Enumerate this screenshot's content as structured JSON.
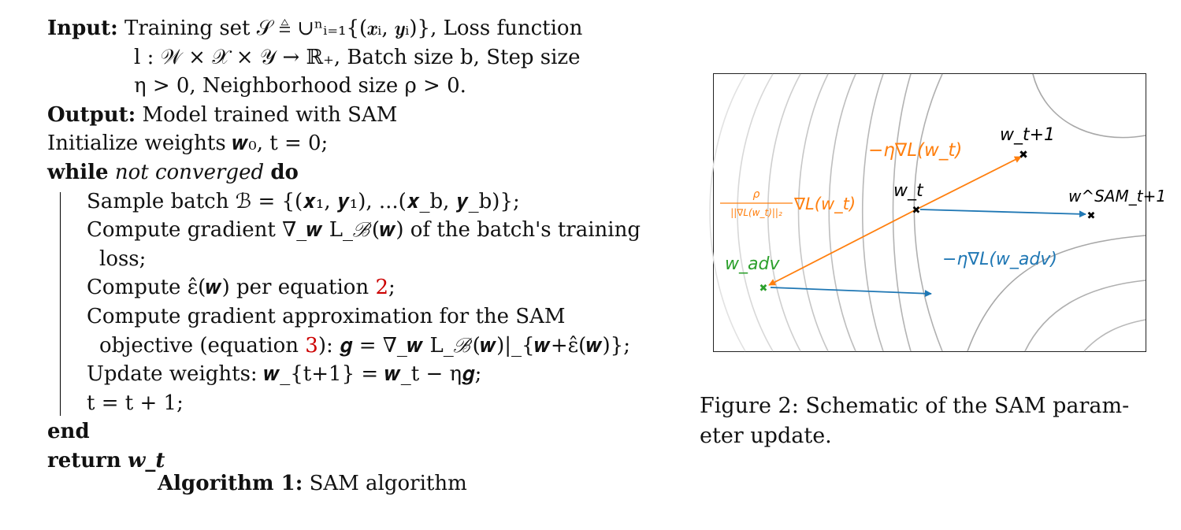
{
  "algorithm": {
    "input_label": "Input:",
    "input_line1": "Training set 𝒮 ≜ ∪ⁿᵢ₌₁{(𝒙ᵢ, 𝒚ᵢ)}, Loss function",
    "input_line2": "l : 𝒲 × 𝒳 × 𝒴 → ℝ₊, Batch size b, Step size",
    "input_line3": "η > 0, Neighborhood size ρ > 0.",
    "output_label": "Output:",
    "output_text": "Model trained with SAM",
    "init": "Initialize weights 𝒘₀, t = 0;",
    "while_kw": "while",
    "while_cond": "not converged",
    "do_kw": "do",
    "sample": "Sample batch ℬ = {(𝒙₁, 𝒚₁), ...(𝒙_b, 𝒚_b)};",
    "grad_line1": "Compute gradient ∇_𝒘 L_ℬ(𝒘) of the batch's training",
    "grad_line2": "loss;",
    "eps_prefix": "Compute ε̂(𝒘) per equation ",
    "eps_ref": "2",
    "eps_suffix": ";",
    "approx_line1": "Compute gradient approximation for the SAM",
    "approx_prefix": "objective (equation ",
    "approx_ref": "3",
    "approx_suffix": "): 𝒈 = ∇_𝒘 L_ℬ(𝒘)|_{𝒘+ε̂(𝒘)};",
    "update": "Update weights: 𝒘_{t+1} = 𝒘_t − η𝒈;",
    "incr": "t = t + 1;",
    "end_kw": "end",
    "return_kw": "return",
    "return_val": "𝒘_t",
    "caption_label": "Algorithm 1:",
    "caption_text": "SAM algorithm"
  },
  "figure": {
    "labels": {
      "grad_step": "−η∇L(w_t)",
      "w_t1": "w_t+1",
      "w_t": "w_t",
      "w_sam": "w^SAM_t+1",
      "rho": "ρ",
      "norm": "||∇L(w_t)||₂",
      "ascent_grad": "∇L(w_t)",
      "w_adv": "w_adv",
      "sam_step": "−η∇L(w_adv)"
    },
    "colors": {
      "orange": "#ff7f0e",
      "blue": "#1f77b4",
      "green": "#2ca02c",
      "contour": "#b0b0b0"
    },
    "caption_line1": "Figure 2: Schematic of the SAM param-",
    "caption_line2": "eter update."
  }
}
